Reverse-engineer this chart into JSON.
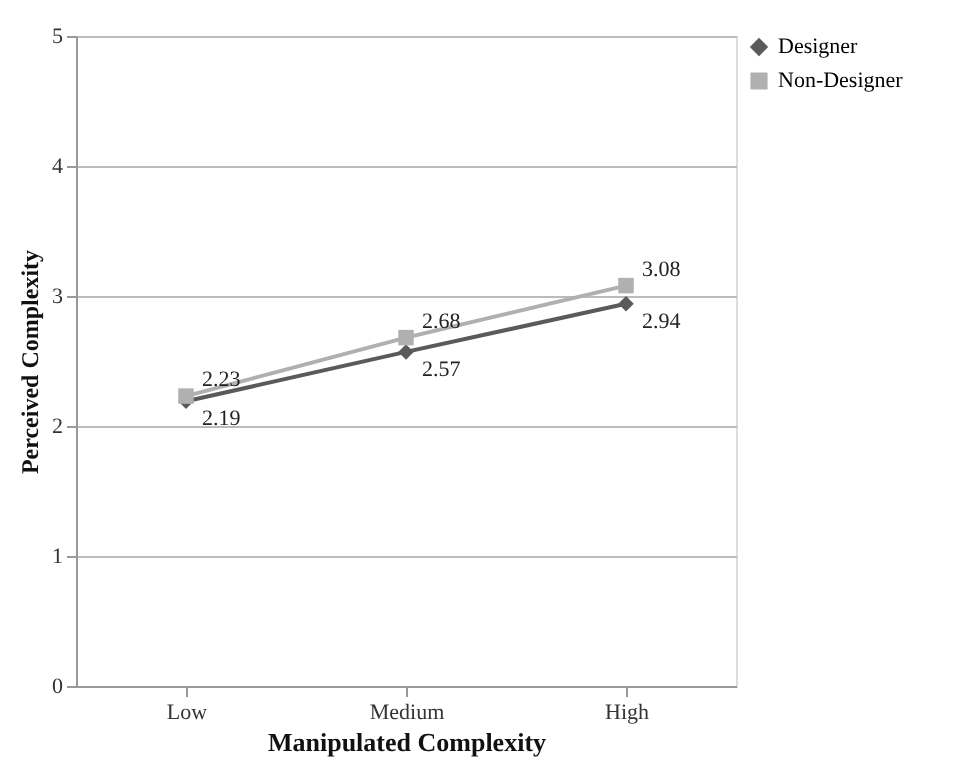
{
  "chart_data": {
    "type": "line",
    "xlabel": "Manipulated Complexity",
    "ylabel": "Perceived Complexity",
    "categories": [
      "Low",
      "Medium",
      "High"
    ],
    "series": [
      {
        "name": "Designer",
        "color": "#5a5a5a",
        "marker": "diamond",
        "values": [
          2.19,
          2.57,
          2.94
        ]
      },
      {
        "name": "Non-Designer",
        "color": "#b0b0b0",
        "marker": "square",
        "values": [
          2.23,
          2.68,
          3.08
        ]
      }
    ],
    "ylim": [
      0,
      5
    ],
    "yticks": [
      0,
      1,
      2,
      3,
      4,
      5
    ],
    "grid": "y",
    "legend": "top right",
    "data_labels": true
  }
}
